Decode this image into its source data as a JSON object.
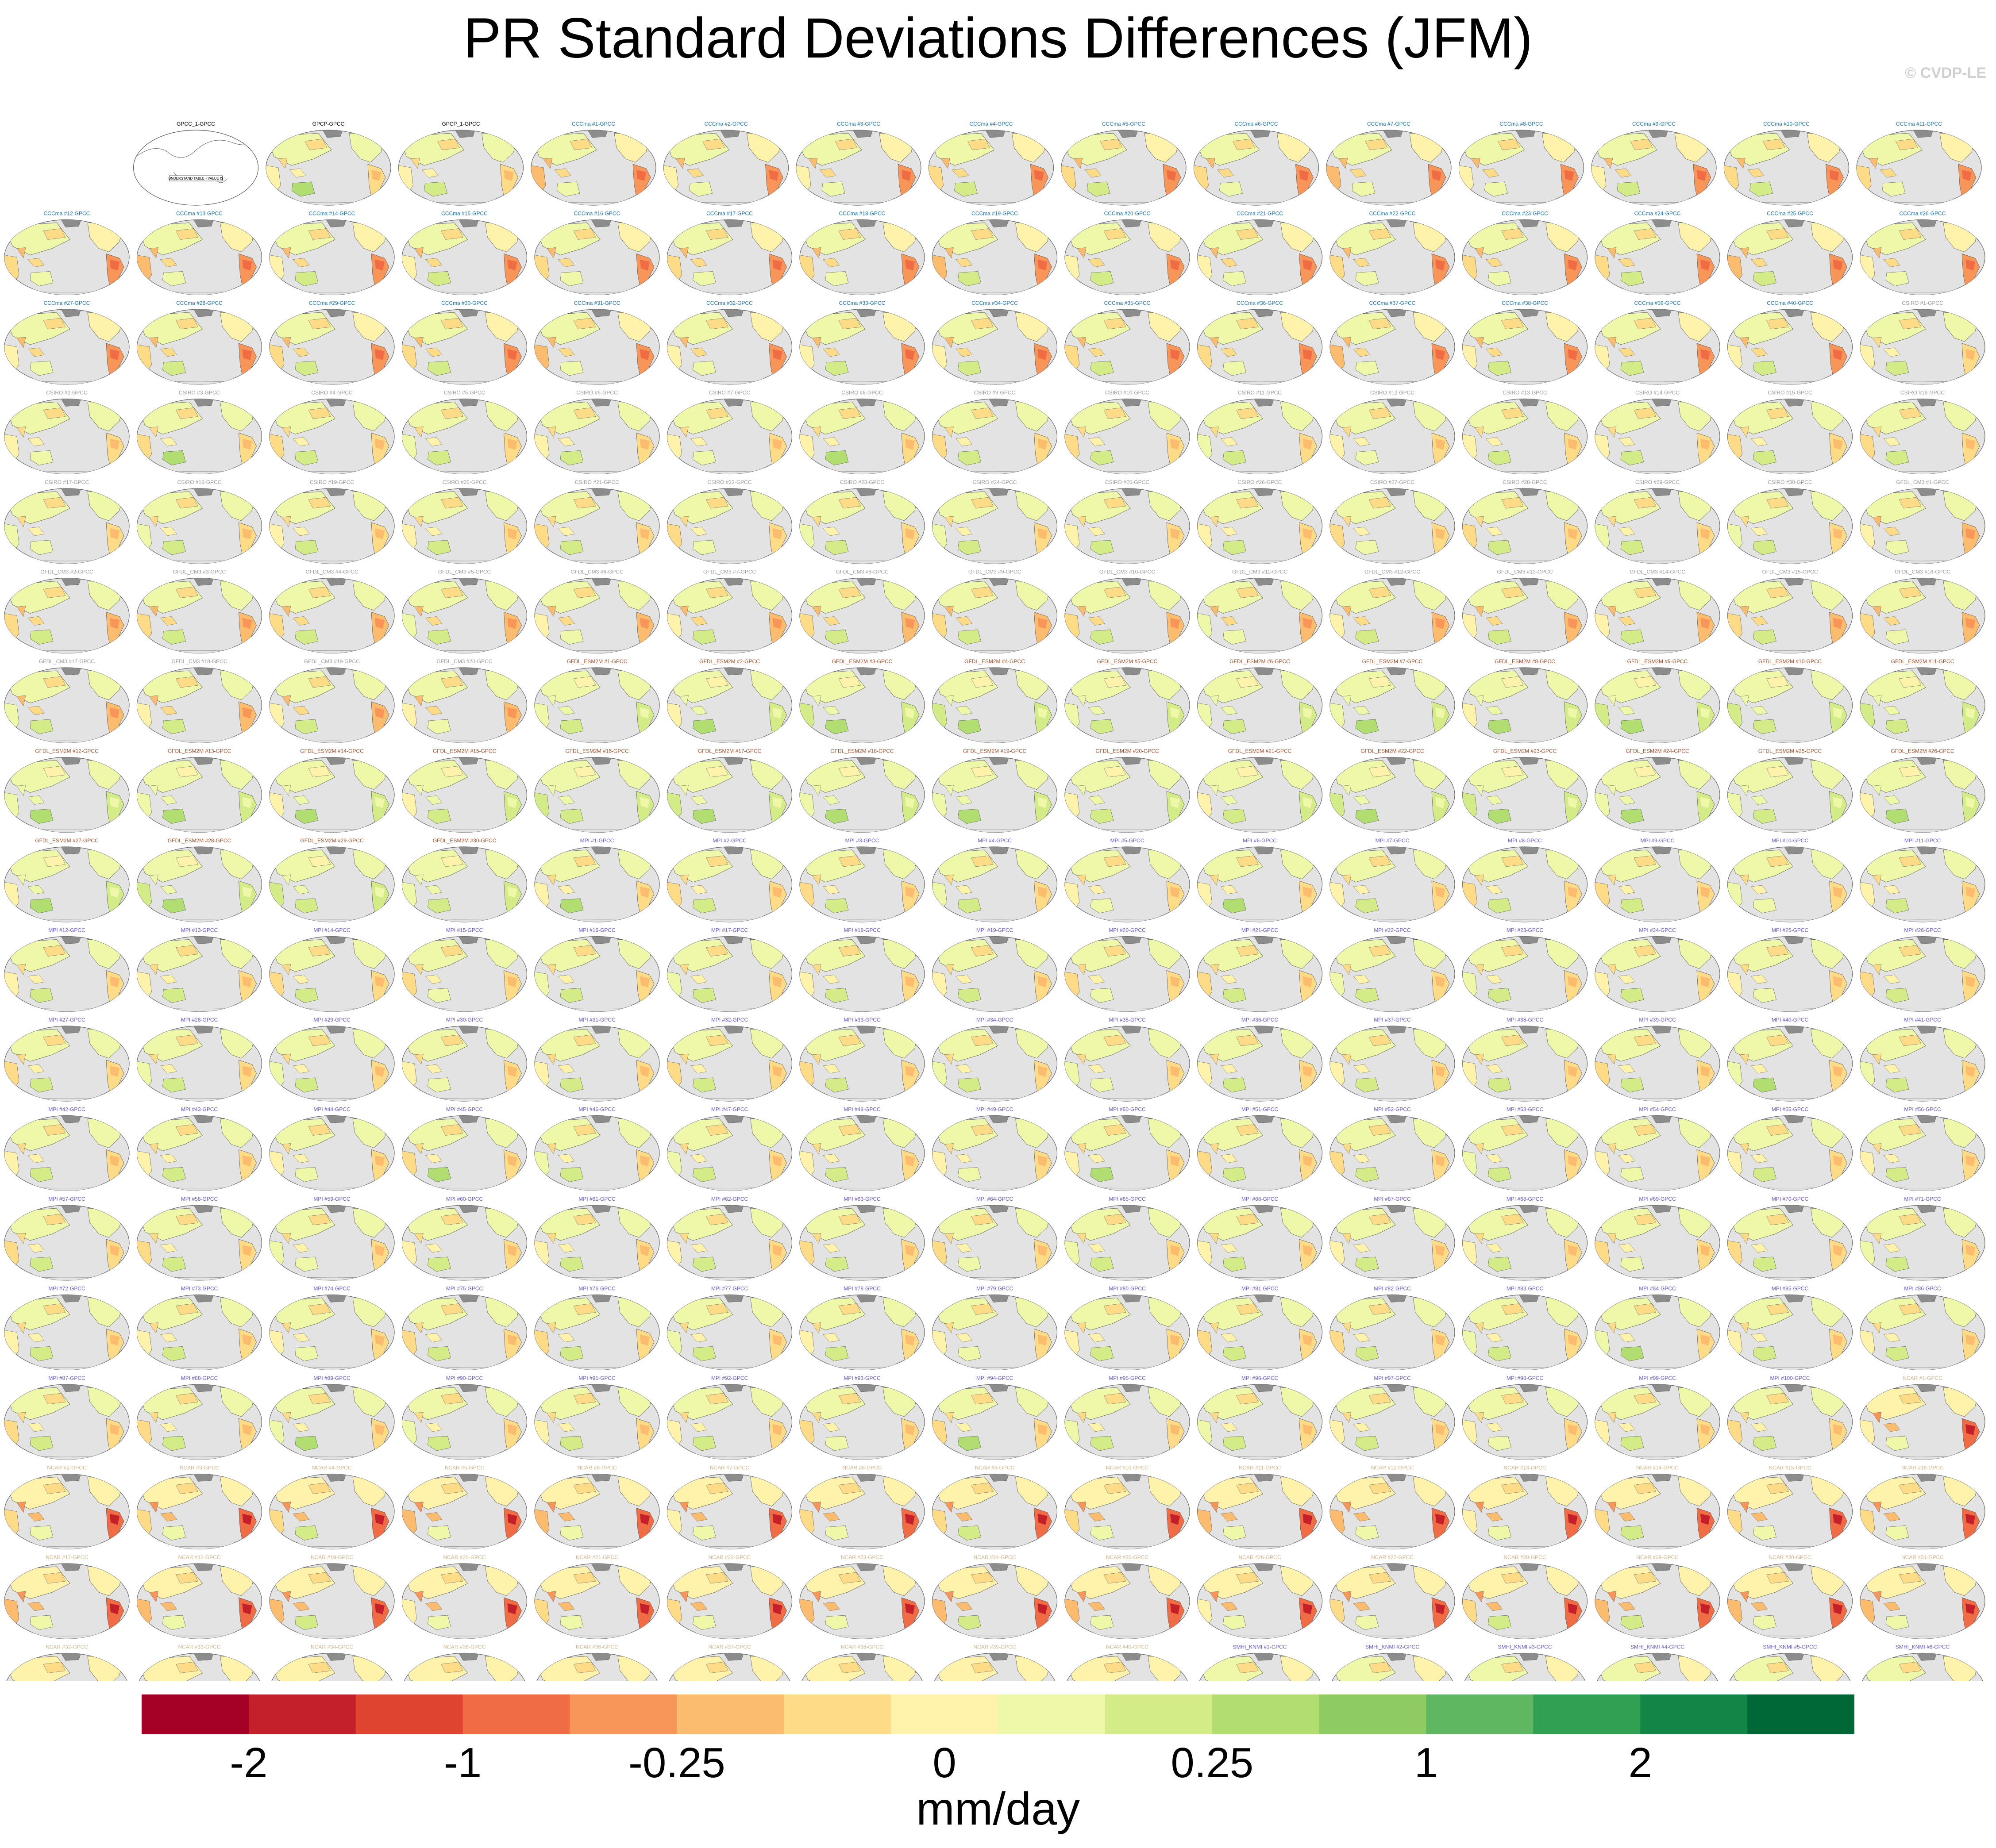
{
  "title": "PR Standard Deviations Differences (JFM)",
  "watermark": "© CVDP-LE",
  "chart_data": {
    "type": "heatmap",
    "panel_layout": "grid of global map panels (15 columns, 17 rows)",
    "reference_panel": {
      "label": "GPCC_1-GPCC",
      "annotation": "UNDERSTAND TABLE - VALUE IS"
    },
    "observation_panels": [
      "GPCP-GPCC",
      "GPCP_1-GPCC"
    ],
    "ensembles": [
      {
        "name": "CCCma",
        "label_color": "#1f78b4",
        "members": 40,
        "label_format": "CCCma #{n}-GPCC"
      },
      {
        "name": "CSIRO",
        "label_color": "#9a9a9a",
        "members": 30,
        "label_format": "CSIRO #{n}-GPCC"
      },
      {
        "name": "GFDL_CM3",
        "label_color": "#9a9a9a",
        "members": 20,
        "label_format": "GFDL_CM3 #{n}-GPCC"
      },
      {
        "name": "GFDL_ESM2M",
        "label_color": "#a0522d",
        "members": 30,
        "label_format": "GFDL_ESM2M #{n}-GPCC"
      },
      {
        "name": "MPI",
        "label_color": "#6a5acd",
        "members": 100,
        "label_format": "MPI #{n}-GPCC"
      },
      {
        "name": "NCAR",
        "label_color": "#d2b48c",
        "members": 40,
        "label_format": "NCAR #{n}-GPCC"
      },
      {
        "name": "SMHI_KNMI",
        "label_color": "#6a5acd",
        "members": 16,
        "label_format": "SMHI_KNMI #{n}-GPCC"
      }
    ],
    "colorbar": {
      "colors": [
        "#a50026",
        "#c4202a",
        "#de4430",
        "#f06c44",
        "#f8965a",
        "#fcbc6e",
        "#fddb87",
        "#fff3ac",
        "#eef8a8",
        "#d3ec87",
        "#b1de71",
        "#8ccc62",
        "#5fb761",
        "#32a052",
        "#138547",
        "#006837"
      ],
      "tick_labels": [
        "-2",
        "-1",
        "-0.25",
        "0",
        "0.25",
        "1",
        "2"
      ],
      "tick_values": [
        -2,
        -1,
        -0.25,
        0,
        0.25,
        1,
        2
      ],
      "units": "mm/day"
    }
  }
}
